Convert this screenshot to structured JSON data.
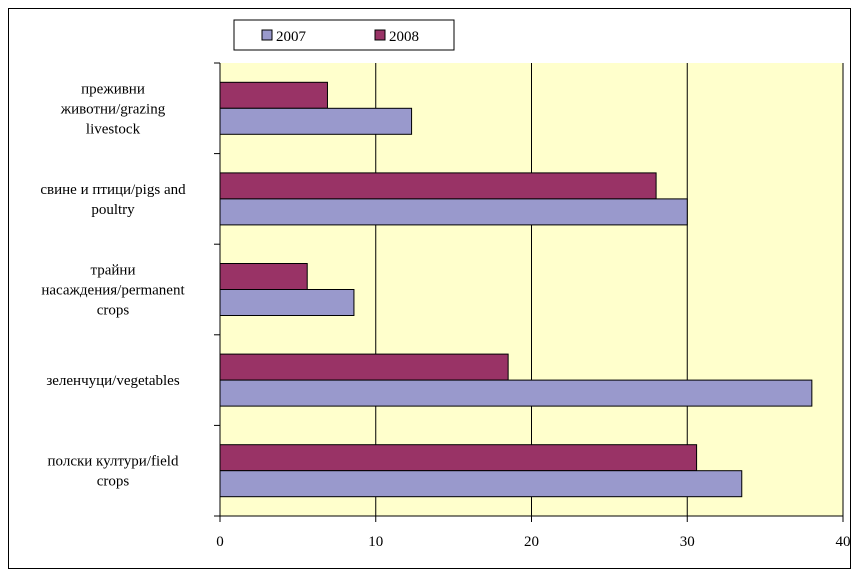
{
  "chart_data": {
    "type": "bar",
    "orientation": "horizontal",
    "categories": [
      [
        "преживни",
        "животни/grazing",
        "livestock"
      ],
      [
        "свине и птици/pigs and",
        "poultry"
      ],
      [
        "трайни",
        "насаждения/permanent",
        "crops"
      ],
      [
        "зеленчуци/vegetables"
      ],
      [
        "полски култури/field",
        "crops"
      ]
    ],
    "series": [
      {
        "name": "2007",
        "color": "#9999cc",
        "values": [
          12.3,
          30.0,
          8.6,
          38.0,
          33.5
        ]
      },
      {
        "name": "2008",
        "color": "#993366",
        "values": [
          6.9,
          28.0,
          5.6,
          18.5,
          30.6
        ]
      }
    ],
    "xlim": [
      0,
      40
    ],
    "xticks": [
      "0",
      "10",
      "20",
      "30",
      "40"
    ],
    "plot_background": "#ffffcc",
    "grid": "vertical",
    "legend_position": "top"
  }
}
